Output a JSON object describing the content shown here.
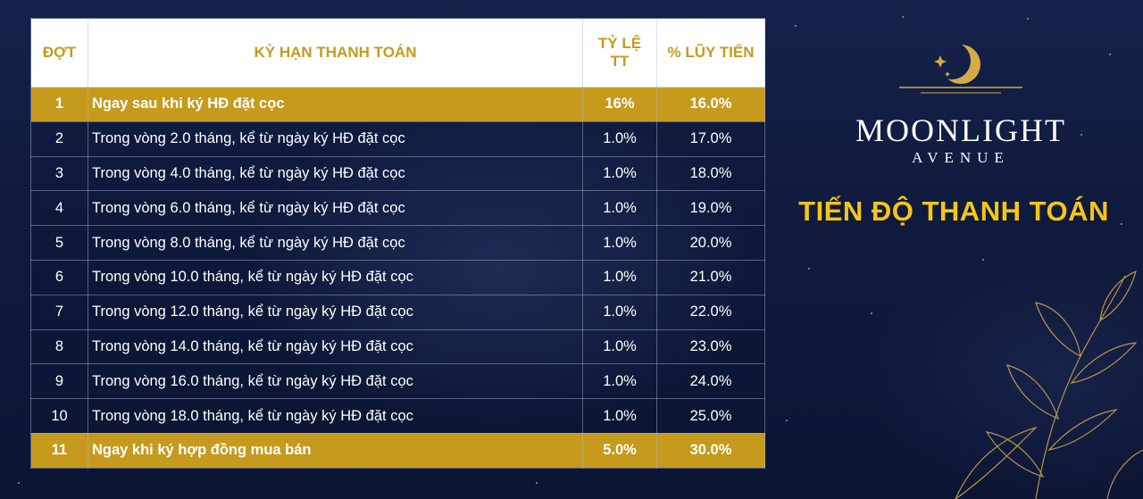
{
  "table": {
    "headers": {
      "dot": "ĐỢT",
      "ky_han": "KỲ HẠN THANH TOÁN",
      "ty_le": "TỶ LỆ TT",
      "luy_tien": "% LŨY TIẾN"
    },
    "rows": [
      {
        "dot": "1",
        "term": "Ngay sau khi ký HĐ đặt cọc",
        "rate": "16%",
        "cumulative": "16.0%",
        "highlight": true
      },
      {
        "dot": "2",
        "term": "Trong vòng 2.0 tháng, kể từ ngày ký HĐ đặt cọc",
        "rate": "1.0%",
        "cumulative": "17.0%",
        "highlight": false
      },
      {
        "dot": "3",
        "term": "Trong vòng 4.0 tháng, kể từ ngày ký HĐ đặt cọc",
        "rate": "1.0%",
        "cumulative": "18.0%",
        "highlight": false
      },
      {
        "dot": "4",
        "term": "Trong vòng 6.0 tháng, kể từ ngày ký HĐ đặt cọc",
        "rate": "1.0%",
        "cumulative": "19.0%",
        "highlight": false
      },
      {
        "dot": "5",
        "term": "Trong vòng 8.0 tháng, kể từ ngày ký HĐ đặt cọc",
        "rate": "1.0%",
        "cumulative": "20.0%",
        "highlight": false
      },
      {
        "dot": "6",
        "term": "Trong vòng 10.0 tháng, kể từ ngày ký HĐ đặt cọc",
        "rate": "1.0%",
        "cumulative": "21.0%",
        "highlight": false
      },
      {
        "dot": "7",
        "term": "Trong vòng 12.0 tháng, kể từ ngày ký HĐ đặt cọc",
        "rate": "1.0%",
        "cumulative": "22.0%",
        "highlight": false
      },
      {
        "dot": "8",
        "term": "Trong vòng 14.0 tháng, kể từ ngày ký HĐ đặt cọc",
        "rate": "1.0%",
        "cumulative": "23.0%",
        "highlight": false
      },
      {
        "dot": "9",
        "term": "Trong vòng 16.0 tháng, kể từ ngày ký HĐ đặt cọc",
        "rate": "1.0%",
        "cumulative": "24.0%",
        "highlight": false
      },
      {
        "dot": "10",
        "term": "Trong vòng 18.0 tháng, kể từ ngày ký HĐ đặt cọc",
        "rate": "1.0%",
        "cumulative": "25.0%",
        "highlight": false
      },
      {
        "dot": "11",
        "term": "Ngay khi ký hợp đồng mua bán",
        "rate": "5.0%",
        "cumulative": "30.0%",
        "highlight": true
      }
    ]
  },
  "brand": {
    "name": "MOONLIGHT",
    "subtitle": "AVENUE",
    "logo_icon": "crescent-moon-star-icon"
  },
  "section_title": "TIẾN ĐỘ THANH TOÁN",
  "decoration_icon": "golden-leaves-icon",
  "colors": {
    "gold": "#c59a1d",
    "title_yellow": "#f5c518",
    "background_navy": "#121d44",
    "header_white": "#ffffff"
  }
}
